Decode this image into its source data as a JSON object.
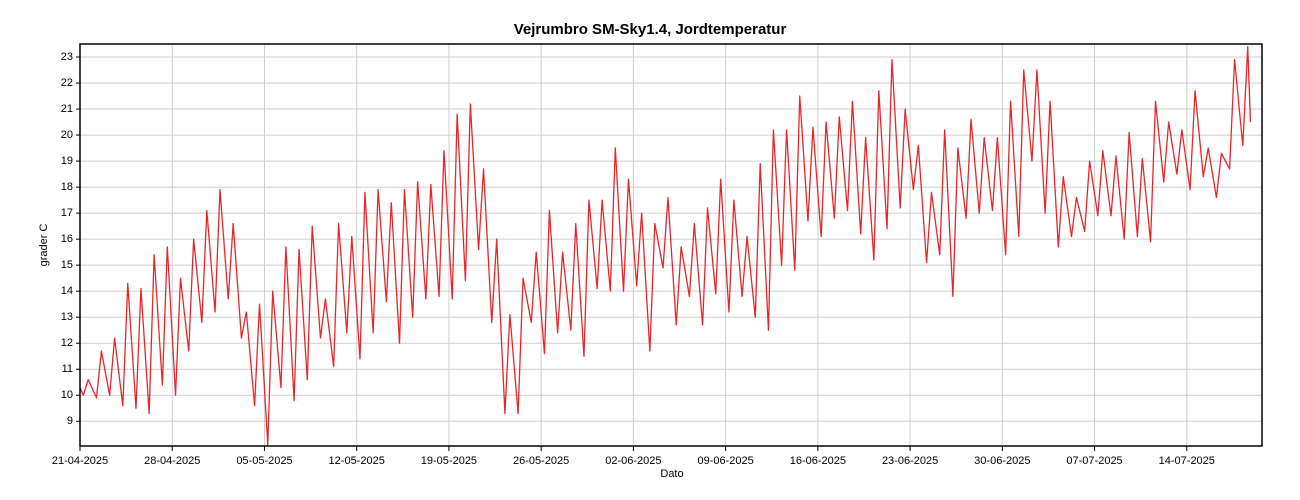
{
  "chart_data": {
    "type": "line",
    "title": "Vejrumbro SM-Sky1.4, Jordtemperatur",
    "xlabel": "Dato",
    "ylabel": "grader C",
    "grid": true,
    "xlim": [
      "2025-04-21T00:00",
      "2025-07-19T17:00"
    ],
    "ylim": [
      8.05,
      23.5
    ],
    "yticks": [
      9,
      10,
      11,
      12,
      13,
      14,
      15,
      16,
      17,
      18,
      19,
      20,
      21,
      22,
      23
    ],
    "xticks": [
      {
        "value": "2025-04-21T00:00",
        "label": "21-04-2025"
      },
      {
        "value": "2025-04-28T00:00",
        "label": "28-04-2025"
      },
      {
        "value": "2025-05-05T00:00",
        "label": "05-05-2025"
      },
      {
        "value": "2025-05-12T00:00",
        "label": "12-05-2025"
      },
      {
        "value": "2025-05-19T00:00",
        "label": "19-05-2025"
      },
      {
        "value": "2025-05-26T00:00",
        "label": "26-05-2025"
      },
      {
        "value": "2025-06-02T00:00",
        "label": "02-06-2025"
      },
      {
        "value": "2025-06-09T00:00",
        "label": "09-06-2025"
      },
      {
        "value": "2025-06-16T00:00",
        "label": "16-06-2025"
      },
      {
        "value": "2025-06-23T00:00",
        "label": "23-06-2025"
      },
      {
        "value": "2025-06-30T00:00",
        "label": "30-06-2025"
      },
      {
        "value": "2025-07-07T00:00",
        "label": "07-07-2025"
      },
      {
        "value": "2025-07-14T00:00",
        "label": "14-07-2025"
      }
    ],
    "x": [
      "2025-04-21T00:00",
      "2025-04-21T06:00",
      "2025-04-21T15:00",
      "2025-04-22T06:00",
      "2025-04-22T15:00",
      "2025-04-23T06:00",
      "2025-04-23T15:00",
      "2025-04-24T06:00",
      "2025-04-24T15:00",
      "2025-04-25T06:00",
      "2025-04-25T15:00",
      "2025-04-26T06:00",
      "2025-04-26T15:00",
      "2025-04-27T06:00",
      "2025-04-27T15:00",
      "2025-04-28T06:00",
      "2025-04-28T15:00",
      "2025-04-29T06:00",
      "2025-04-29T15:00",
      "2025-04-30T06:00",
      "2025-04-30T15:00",
      "2025-05-01T06:00",
      "2025-05-01T15:00",
      "2025-05-02T06:00",
      "2025-05-02T15:00",
      "2025-05-03T06:00",
      "2025-05-03T15:00",
      "2025-05-04T06:00",
      "2025-05-04T15:00",
      "2025-05-05T06:00",
      "2025-05-05T15:00",
      "2025-05-06T06:00",
      "2025-05-06T15:00",
      "2025-05-07T06:00",
      "2025-05-07T15:00",
      "2025-05-08T06:00",
      "2025-05-08T15:00",
      "2025-05-09T06:00",
      "2025-05-09T15:00",
      "2025-05-10T06:00",
      "2025-05-10T15:00",
      "2025-05-11T06:00",
      "2025-05-11T15:00",
      "2025-05-12T06:00",
      "2025-05-12T15:00",
      "2025-05-13T06:00",
      "2025-05-13T15:00",
      "2025-05-14T06:00",
      "2025-05-14T15:00",
      "2025-05-15T06:00",
      "2025-05-15T15:00",
      "2025-05-16T06:00",
      "2025-05-16T15:00",
      "2025-05-17T06:00",
      "2025-05-17T15:00",
      "2025-05-18T06:00",
      "2025-05-18T15:00",
      "2025-05-19T06:00",
      "2025-05-19T15:00",
      "2025-05-20T06:00",
      "2025-05-20T15:00",
      "2025-05-21T06:00",
      "2025-05-21T15:00",
      "2025-05-22T06:00",
      "2025-05-22T15:00",
      "2025-05-23T06:00",
      "2025-05-23T15:00",
      "2025-05-24T06:00",
      "2025-05-24T15:00",
      "2025-05-25T06:00",
      "2025-05-25T15:00",
      "2025-05-26T06:00",
      "2025-05-26T15:00",
      "2025-05-27T06:00",
      "2025-05-27T15:00",
      "2025-05-28T06:00",
      "2025-05-28T15:00",
      "2025-05-29T06:00",
      "2025-05-29T15:00",
      "2025-05-30T06:00",
      "2025-05-30T15:00",
      "2025-05-31T06:00",
      "2025-05-31T15:00",
      "2025-06-01T06:00",
      "2025-06-01T15:00",
      "2025-06-02T06:00",
      "2025-06-02T15:00",
      "2025-06-03T06:00",
      "2025-06-03T15:00",
      "2025-06-04T06:00",
      "2025-06-04T15:00",
      "2025-06-05T06:00",
      "2025-06-05T15:00",
      "2025-06-06T06:00",
      "2025-06-06T15:00",
      "2025-06-07T06:00",
      "2025-06-07T15:00",
      "2025-06-08T06:00",
      "2025-06-08T15:00",
      "2025-06-09T06:00",
      "2025-06-09T15:00",
      "2025-06-10T06:00",
      "2025-06-10T15:00",
      "2025-06-11T06:00",
      "2025-06-11T15:00",
      "2025-06-12T06:00",
      "2025-06-12T15:00",
      "2025-06-13T06:00",
      "2025-06-13T15:00",
      "2025-06-14T06:00",
      "2025-06-14T15:00",
      "2025-06-15T06:00",
      "2025-06-15T15:00",
      "2025-06-16T06:00",
      "2025-06-16T15:00",
      "2025-06-17T06:00",
      "2025-06-17T15:00",
      "2025-06-18T06:00",
      "2025-06-18T15:00",
      "2025-06-19T06:00",
      "2025-06-19T15:00",
      "2025-06-20T06:00",
      "2025-06-20T15:00",
      "2025-06-21T06:00",
      "2025-06-21T15:00",
      "2025-06-22T06:00",
      "2025-06-22T15:00",
      "2025-06-23T06:00",
      "2025-06-23T15:00",
      "2025-06-24T06:00",
      "2025-06-24T15:00",
      "2025-06-25T06:00",
      "2025-06-25T15:00",
      "2025-06-26T06:00",
      "2025-06-26T15:00",
      "2025-06-27T06:00",
      "2025-06-27T15:00",
      "2025-06-28T06:00",
      "2025-06-28T15:00",
      "2025-06-29T06:00",
      "2025-06-29T15:00",
      "2025-06-30T06:00",
      "2025-06-30T15:00",
      "2025-07-01T06:00",
      "2025-07-01T15:00",
      "2025-07-02T06:00",
      "2025-07-02T15:00",
      "2025-07-03T06:00",
      "2025-07-03T15:00",
      "2025-07-04T06:00",
      "2025-07-04T15:00",
      "2025-07-05T06:00",
      "2025-07-05T15:00",
      "2025-07-06T06:00",
      "2025-07-06T15:00",
      "2025-07-07T06:00",
      "2025-07-07T15:00",
      "2025-07-08T06:00",
      "2025-07-08T15:00",
      "2025-07-09T06:00",
      "2025-07-09T15:00",
      "2025-07-10T06:00",
      "2025-07-10T15:00",
      "2025-07-11T06:00",
      "2025-07-11T15:00",
      "2025-07-12T06:00",
      "2025-07-12T15:00",
      "2025-07-13T06:00",
      "2025-07-13T15:00",
      "2025-07-14T06:00",
      "2025-07-14T15:00",
      "2025-07-15T06:00",
      "2025-07-15T15:00",
      "2025-07-16T06:00",
      "2025-07-16T15:00",
      "2025-07-17T06:00",
      "2025-07-17T15:00",
      "2025-07-18T06:00",
      "2025-07-18T15:00",
      "2025-07-18T20:00"
    ],
    "series": [
      {
        "color": "#e8262a",
        "values": [
          10.3,
          10.0,
          10.6,
          9.9,
          11.7,
          10.0,
          12.2,
          9.6,
          14.3,
          9.5,
          14.1,
          9.3,
          15.4,
          10.4,
          15.7,
          10.0,
          14.5,
          11.7,
          16.0,
          12.8,
          17.1,
          13.2,
          17.9,
          13.7,
          16.6,
          12.2,
          13.2,
          9.6,
          13.5,
          8.1,
          14.0,
          10.3,
          15.7,
          9.8,
          15.6,
          10.6,
          16.5,
          12.2,
          13.7,
          11.1,
          16.6,
          12.4,
          16.1,
          11.4,
          17.8,
          12.4,
          17.9,
          13.6,
          17.4,
          12.0,
          17.9,
          13.0,
          18.2,
          13.7,
          18.1,
          13.8,
          19.4,
          13.7,
          20.8,
          14.4,
          21.2,
          15.6,
          18.7,
          12.8,
          16.0,
          9.3,
          13.1,
          9.3,
          14.5,
          12.8,
          15.5,
          11.6,
          17.1,
          12.4,
          15.5,
          12.5,
          16.6,
          11.5,
          17.5,
          14.1,
          17.5,
          14.0,
          19.5,
          14.0,
          18.3,
          14.2,
          17.0,
          11.7,
          16.6,
          14.9,
          17.6,
          12.7,
          15.7,
          13.8,
          16.6,
          12.7,
          17.2,
          13.9,
          18.3,
          13.2,
          17.5,
          13.8,
          16.1,
          13.0,
          18.9,
          12.5,
          20.2,
          15.0,
          20.2,
          14.8,
          21.5,
          16.7,
          20.3,
          16.1,
          20.5,
          16.8,
          20.7,
          17.1,
          21.3,
          16.2,
          19.9,
          15.2,
          21.7,
          16.4,
          22.9,
          17.2,
          21.0,
          17.9,
          19.6,
          15.1,
          17.8,
          15.4,
          20.2,
          13.8,
          19.5,
          16.8,
          20.6,
          17.0,
          19.9,
          17.1,
          19.9,
          15.4,
          21.3,
          16.1,
          22.5,
          19.0,
          22.5,
          17.0,
          21.3,
          15.7,
          18.4,
          16.1,
          17.6,
          16.3,
          19.0,
          16.9,
          19.4,
          16.9,
          19.2,
          16.0,
          20.1,
          16.1,
          19.1,
          15.9,
          21.3,
          18.2,
          20.5,
          18.5,
          20.2,
          17.9,
          21.7,
          18.4,
          19.5,
          17.6,
          19.3,
          18.7,
          22.9,
          19.6,
          23.4,
          20.5
        ]
      }
    ]
  }
}
